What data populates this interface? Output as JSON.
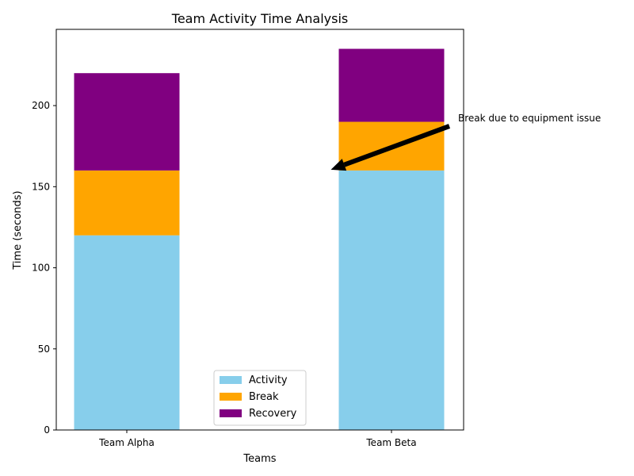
{
  "chart_data": {
    "type": "bar",
    "stacked": true,
    "title": "Team Activity Time Analysis",
    "xlabel": "Teams",
    "ylabel": "Time (seconds)",
    "categories": [
      "Team Alpha",
      "Team Beta"
    ],
    "series": [
      {
        "name": "Activity",
        "values": [
          120,
          160
        ],
        "color": "#87ceeb"
      },
      {
        "name": "Break",
        "values": [
          40,
          30
        ],
        "color": "#ffa500"
      },
      {
        "name": "Recovery",
        "values": [
          60,
          45
        ],
        "color": "#800080"
      }
    ],
    "ylim": [
      0,
      247
    ],
    "yticks": [
      0,
      50,
      100,
      150,
      200
    ],
    "grid": false,
    "legend": {
      "placement": "bottom-center"
    },
    "annotations": [
      {
        "text": "Break due to equipment issue",
        "target_category": "Team Beta",
        "target_value": 160
      }
    ]
  }
}
